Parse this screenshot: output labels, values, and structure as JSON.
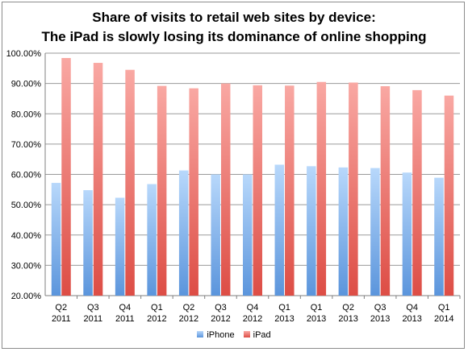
{
  "chart_data": {
    "type": "bar",
    "title": "Share of visits to retail web sites by device:",
    "subtitle": "The iPad is slowly losing its dominance of online shopping",
    "categories": [
      [
        "Q2",
        "2011"
      ],
      [
        "Q3",
        "2011"
      ],
      [
        "Q4",
        "2011"
      ],
      [
        "Q1",
        "2012"
      ],
      [
        "Q2",
        "2012"
      ],
      [
        "Q3",
        "2012"
      ],
      [
        "Q4",
        "2012"
      ],
      [
        "Q1",
        "2013"
      ],
      [
        "Q1",
        "2013"
      ],
      [
        "Q2",
        "2013"
      ],
      [
        "Q3",
        "2013"
      ],
      [
        "Q4",
        "2013"
      ],
      [
        "Q1",
        "2014"
      ]
    ],
    "series": [
      {
        "name": "iPhone",
        "color": "#8cbcf0",
        "values": [
          57.2,
          54.8,
          52.3,
          56.8,
          61.3,
          60.0,
          60.0,
          63.2,
          62.7,
          62.3,
          62.1,
          60.6,
          58.9
        ]
      },
      {
        "name": "iPad",
        "color": "#f07f78",
        "values": [
          98.4,
          96.8,
          94.5,
          89.2,
          88.4,
          90.0,
          89.4,
          89.3,
          90.5,
          90.3,
          89.1,
          87.8,
          86.0
        ]
      }
    ],
    "ylim": [
      20,
      100
    ],
    "yticks": [
      "20.00%",
      "30.00%",
      "40.00%",
      "50.00%",
      "60.00%",
      "70.00%",
      "80.00%",
      "90.00%",
      "100.00%"
    ],
    "grid": true,
    "legend": "bottom"
  }
}
